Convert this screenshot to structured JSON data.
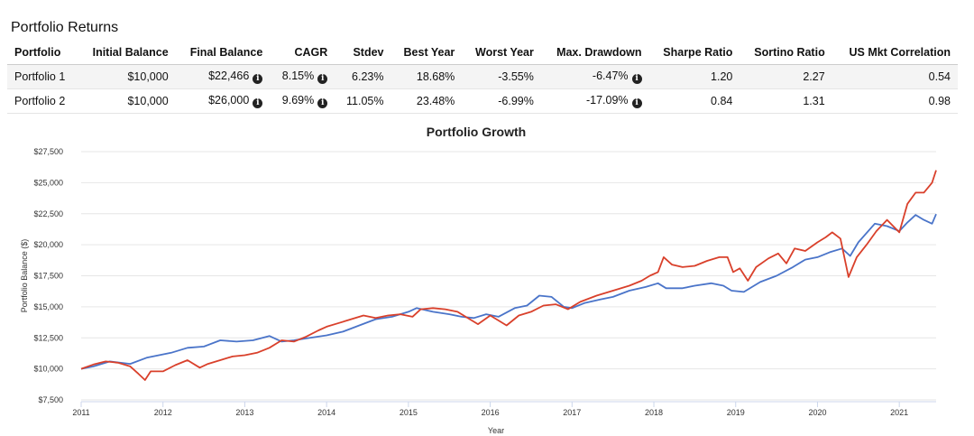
{
  "section_title": "Portfolio Returns",
  "table": {
    "headers": [
      "Portfolio",
      "Initial Balance",
      "Final Balance",
      "CAGR",
      "Stdev",
      "Best Year",
      "Worst Year",
      "Max. Drawdown",
      "Sharpe Ratio",
      "Sortino Ratio",
      "US Mkt Correlation"
    ],
    "rows": [
      {
        "name": "Portfolio 1",
        "initial": "$10,000",
        "final": "$22,466",
        "cagr": "8.15%",
        "stdev": "6.23%",
        "best": "18.68%",
        "worst": "-3.55%",
        "drawdown": "-6.47%",
        "sharpe": "1.20",
        "sortino": "2.27",
        "corr": "0.54"
      },
      {
        "name": "Portfolio 2",
        "initial": "$10,000",
        "final": "$26,000",
        "cagr": "9.69%",
        "stdev": "11.05%",
        "best": "23.48%",
        "worst": "-6.99%",
        "drawdown": "-17.09%",
        "sharpe": "0.84",
        "sortino": "1.31",
        "corr": "0.98"
      }
    ],
    "info_icon": "info-circle-icon"
  },
  "chart_data": {
    "type": "line",
    "title": "Portfolio Growth",
    "xlabel": "Year",
    "ylabel": "Portfolio Balance ($)",
    "xlim": [
      2011,
      2021.45
    ],
    "ylim": [
      7500,
      27500
    ],
    "x_ticks": [
      2011,
      2012,
      2013,
      2014,
      2015,
      2016,
      2017,
      2018,
      2019,
      2020,
      2021
    ],
    "y_ticks": [
      7500,
      10000,
      12500,
      15000,
      17500,
      20000,
      22500,
      25000,
      27500
    ],
    "y_tick_labels": [
      "$7,500",
      "$10,000",
      "$12,500",
      "$15,000",
      "$17,500",
      "$20,000",
      "$22,500",
      "$25,000",
      "$27,500"
    ],
    "grid": true,
    "series": [
      {
        "name": "Portfolio 1",
        "color": "#4a74c9",
        "points": [
          [
            2011.0,
            10000
          ],
          [
            2011.15,
            10200
          ],
          [
            2011.35,
            10600
          ],
          [
            2011.6,
            10400
          ],
          [
            2011.8,
            10900
          ],
          [
            2011.95,
            11100
          ],
          [
            2012.1,
            11300
          ],
          [
            2012.3,
            11700
          ],
          [
            2012.5,
            11800
          ],
          [
            2012.7,
            12300
          ],
          [
            2012.9,
            12200
          ],
          [
            2013.1,
            12300
          ],
          [
            2013.3,
            12650
          ],
          [
            2013.45,
            12200
          ],
          [
            2013.6,
            12300
          ],
          [
            2013.75,
            12450
          ],
          [
            2014.0,
            12700
          ],
          [
            2014.2,
            13000
          ],
          [
            2014.4,
            13500
          ],
          [
            2014.6,
            14000
          ],
          [
            2014.8,
            14200
          ],
          [
            2015.0,
            14600
          ],
          [
            2015.1,
            14900
          ],
          [
            2015.3,
            14600
          ],
          [
            2015.5,
            14400
          ],
          [
            2015.65,
            14200
          ],
          [
            2015.8,
            14100
          ],
          [
            2015.95,
            14400
          ],
          [
            2016.1,
            14200
          ],
          [
            2016.3,
            14900
          ],
          [
            2016.45,
            15100
          ],
          [
            2016.6,
            15900
          ],
          [
            2016.75,
            15800
          ],
          [
            2016.9,
            15000
          ],
          [
            2017.0,
            14900
          ],
          [
            2017.15,
            15300
          ],
          [
            2017.35,
            15600
          ],
          [
            2017.5,
            15800
          ],
          [
            2017.7,
            16300
          ],
          [
            2017.9,
            16600
          ],
          [
            2018.05,
            16900
          ],
          [
            2018.15,
            16500
          ],
          [
            2018.35,
            16500
          ],
          [
            2018.5,
            16700
          ],
          [
            2018.7,
            16900
          ],
          [
            2018.85,
            16700
          ],
          [
            2018.95,
            16300
          ],
          [
            2019.1,
            16200
          ],
          [
            2019.3,
            17000
          ],
          [
            2019.5,
            17500
          ],
          [
            2019.7,
            18200
          ],
          [
            2019.85,
            18800
          ],
          [
            2020.0,
            19000
          ],
          [
            2020.15,
            19400
          ],
          [
            2020.3,
            19700
          ],
          [
            2020.4,
            19100
          ],
          [
            2020.5,
            20200
          ],
          [
            2020.7,
            21700
          ],
          [
            2020.85,
            21500
          ],
          [
            2021.0,
            21100
          ],
          [
            2021.1,
            21800
          ],
          [
            2021.2,
            22400
          ],
          [
            2021.3,
            22000
          ],
          [
            2021.4,
            21700
          ],
          [
            2021.45,
            22466
          ]
        ]
      },
      {
        "name": "Portfolio 2",
        "color": "#d9402b",
        "points": [
          [
            2011.0,
            10000
          ],
          [
            2011.15,
            10350
          ],
          [
            2011.3,
            10600
          ],
          [
            2011.45,
            10500
          ],
          [
            2011.6,
            10200
          ],
          [
            2011.7,
            9600
          ],
          [
            2011.78,
            9100
          ],
          [
            2011.85,
            9800
          ],
          [
            2012.0,
            9800
          ],
          [
            2012.15,
            10300
          ],
          [
            2012.3,
            10700
          ],
          [
            2012.45,
            10100
          ],
          [
            2012.55,
            10400
          ],
          [
            2012.7,
            10700
          ],
          [
            2012.85,
            11000
          ],
          [
            2013.0,
            11100
          ],
          [
            2013.15,
            11300
          ],
          [
            2013.3,
            11700
          ],
          [
            2013.45,
            12300
          ],
          [
            2013.6,
            12200
          ],
          [
            2013.75,
            12600
          ],
          [
            2013.9,
            13100
          ],
          [
            2014.0,
            13400
          ],
          [
            2014.15,
            13700
          ],
          [
            2014.3,
            14000
          ],
          [
            2014.45,
            14300
          ],
          [
            2014.6,
            14100
          ],
          [
            2014.75,
            14300
          ],
          [
            2014.9,
            14400
          ],
          [
            2015.05,
            14200
          ],
          [
            2015.15,
            14800
          ],
          [
            2015.3,
            14900
          ],
          [
            2015.45,
            14800
          ],
          [
            2015.6,
            14600
          ],
          [
            2015.75,
            14000
          ],
          [
            2015.85,
            13600
          ],
          [
            2016.0,
            14300
          ],
          [
            2016.1,
            13900
          ],
          [
            2016.2,
            13500
          ],
          [
            2016.35,
            14300
          ],
          [
            2016.5,
            14600
          ],
          [
            2016.65,
            15100
          ],
          [
            2016.8,
            15200
          ],
          [
            2016.95,
            14800
          ],
          [
            2017.1,
            15400
          ],
          [
            2017.3,
            15900
          ],
          [
            2017.5,
            16300
          ],
          [
            2017.7,
            16700
          ],
          [
            2017.85,
            17100
          ],
          [
            2017.95,
            17500
          ],
          [
            2018.05,
            17800
          ],
          [
            2018.12,
            19000
          ],
          [
            2018.22,
            18400
          ],
          [
            2018.35,
            18200
          ],
          [
            2018.5,
            18300
          ],
          [
            2018.65,
            18700
          ],
          [
            2018.8,
            19000
          ],
          [
            2018.9,
            19000
          ],
          [
            2018.97,
            17800
          ],
          [
            2019.05,
            18100
          ],
          [
            2019.15,
            17100
          ],
          [
            2019.25,
            18200
          ],
          [
            2019.4,
            18900
          ],
          [
            2019.52,
            19300
          ],
          [
            2019.62,
            18500
          ],
          [
            2019.72,
            19700
          ],
          [
            2019.85,
            19500
          ],
          [
            2020.0,
            20200
          ],
          [
            2020.1,
            20600
          ],
          [
            2020.18,
            21000
          ],
          [
            2020.28,
            20500
          ],
          [
            2020.38,
            17400
          ],
          [
            2020.48,
            19000
          ],
          [
            2020.6,
            20000
          ],
          [
            2020.72,
            21100
          ],
          [
            2020.85,
            22000
          ],
          [
            2021.0,
            21000
          ],
          [
            2021.1,
            23300
          ],
          [
            2021.2,
            24200
          ],
          [
            2021.3,
            24200
          ],
          [
            2021.4,
            25000
          ],
          [
            2021.45,
            26000
          ]
        ]
      }
    ]
  }
}
